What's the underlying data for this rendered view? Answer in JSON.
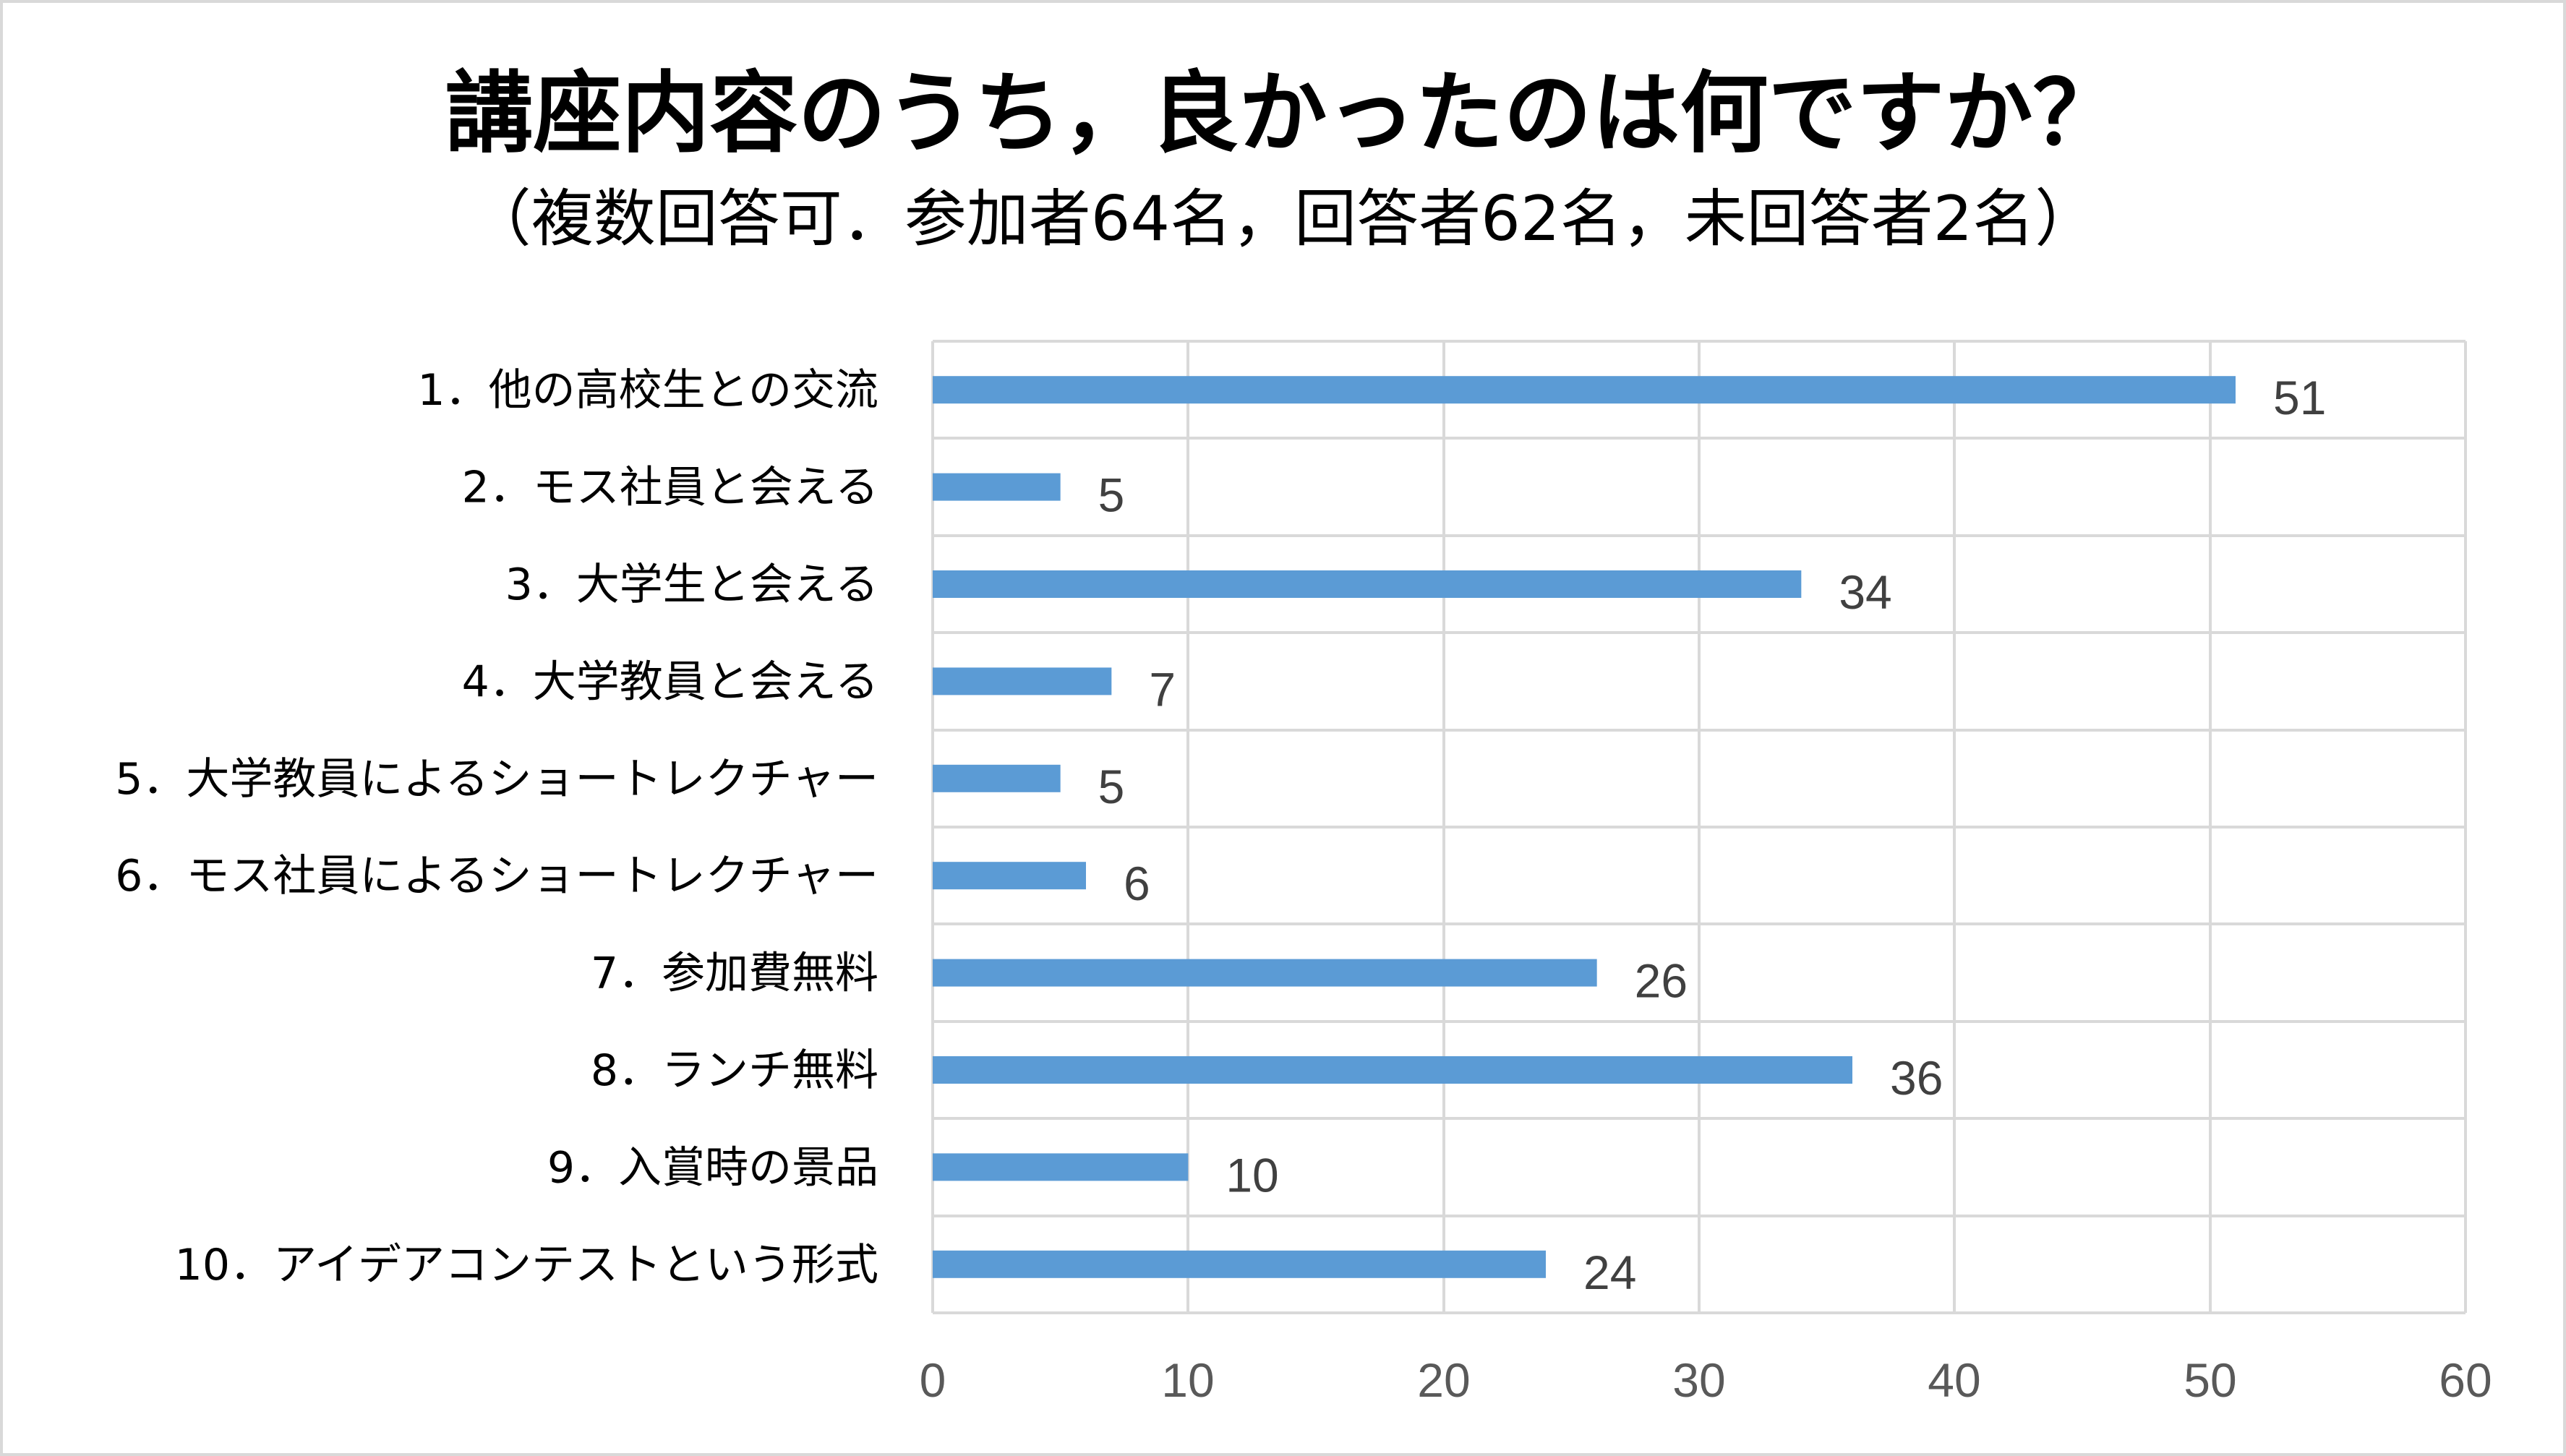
{
  "chart_data": {
    "type": "bar",
    "orientation": "horizontal",
    "title": "講座内容のうち，良かったのは何ですか？",
    "subtitle": "（複数回答可．参加者64名，回答者62名，未回答者2名）",
    "categories": [
      "1．他の高校生との交流",
      "2．モス社員と会える",
      "3．大学生と会える",
      "4．大学教員と会える",
      "5．大学教員によるショートレクチャー",
      "6．モス社員によるショートレクチャー",
      "7．参加費無料",
      "8．ランチ無料",
      "9．入賞時の景品",
      "10．アイデアコンテストという形式"
    ],
    "values": [
      51,
      5,
      34,
      7,
      5,
      6,
      26,
      36,
      10,
      24
    ],
    "xlim": [
      0,
      60
    ],
    "xticks": [
      0,
      10,
      20,
      30,
      40,
      50,
      60
    ],
    "grid": true,
    "legend": "none",
    "bar_color": "#5b9bd5",
    "grid_color": "#d9d9d9"
  }
}
